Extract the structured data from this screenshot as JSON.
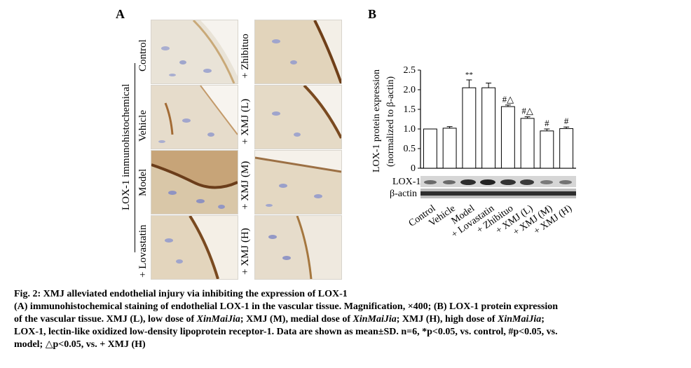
{
  "panel_a": {
    "letter": "A",
    "group_label": "LOX-1 immunohistochemical",
    "left_column_labels": [
      "Control",
      "Vehicle",
      "Model",
      "+ Lovastatin"
    ],
    "right_column_labels": [
      "+ Zhibituo",
      "+ XMJ (L)",
      "+ XMJ (M)",
      "+ XMJ (H)"
    ]
  },
  "panel_b": {
    "letter": "B",
    "ylabel_line1": "LOX-1 protein expression",
    "ylabel_line2": "(normalized to β-actin)",
    "blot_labels": [
      "LOX-1",
      "β-actin"
    ]
  },
  "chart_data": {
    "type": "bar",
    "categories": [
      "Control",
      "Vehicle",
      "Model",
      "+ Lovastatin",
      "+ Zhibituo",
      "+ XMJ (L)",
      "+ XMJ (M)",
      "+ XMJ (H)"
    ],
    "values": [
      1.0,
      1.02,
      2.05,
      2.05,
      1.57,
      1.27,
      0.95,
      1.01
    ],
    "errors": [
      0.0,
      0.04,
      0.2,
      0.12,
      0.04,
      0.04,
      0.05,
      0.04
    ],
    "annotations": [
      "",
      "",
      "**",
      "",
      "#△",
      "#△",
      "#",
      "#"
    ],
    "ylim": [
      0,
      2.5
    ],
    "yticks": [
      "0",
      "0.5",
      "1.0",
      "1.5",
      "2.0",
      "2.5"
    ],
    "xlabel": "",
    "ylabel": "LOX-1 protein expression (normalized to β-actin)",
    "bar_fill": "#ffffff",
    "bar_stroke": "#000000"
  },
  "caption": {
    "title": "Fig. 2: XMJ alleviated endothelial injury via inhibiting the expression of LOX-1",
    "line1": "(A) immunohistochemical staining of endothelial LOX-1 in the vascular tissue. Magnification, ×400; (B) LOX-1 protein expression",
    "line2_a": "of the vascular tissue. XMJ (L), low dose of ",
    "line2_b": "XinMaiJia",
    "line2_c": "; XMJ (M), medial dose of ",
    "line2_d": "XinMaiJia",
    "line2_e": "; XMJ (H), high dose of ",
    "line2_f": "XinMaiJia",
    "line2_g": ";",
    "line3": "LOX-1, lectin-like oxidized low-density lipoprotein receptor-1. Data are shown as mean±SD. n=6, *p<0.05, vs. control, #p<0.05, vs.",
    "line4": "model; △p<0.05, vs. + XMJ (H)"
  }
}
